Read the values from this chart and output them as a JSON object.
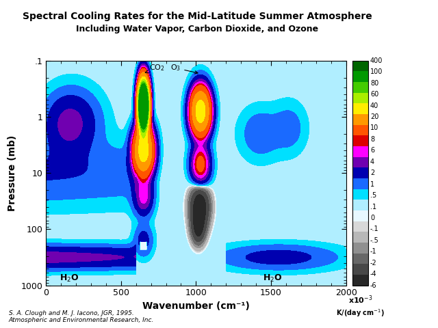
{
  "title1": "Spectral Cooling Rates for the Mid-Latitude Summer Atmosphere",
  "title2": "Including Water Vapor, Carbon Dioxide, and Ozone",
  "xlabel": "Wavenumber (cm⁻¹)",
  "ylabel": "Pressure (mb)",
  "footnote": "S. A. Clough and M. J. Iacono, JGR, 1995.\nAtmospheric and Environmental Research, Inc.",
  "levels": [
    -6,
    -4,
    -2,
    -1,
    -0.5,
    -0.1,
    0,
    0.1,
    0.5,
    1,
    2,
    4,
    6,
    8,
    10,
    20,
    40,
    60,
    80,
    100,
    400
  ],
  "level_colors": [
    "#282828",
    "#484848",
    "#686868",
    "#909090",
    "#b8b8b8",
    "#d8d8d8",
    "#e8f8ff",
    "#b0eeff",
    "#00e0ff",
    "#1a6aff",
    "#0000b0",
    "#7000b0",
    "#ff00ff",
    "#dd0000",
    "#ff5500",
    "#ff9900",
    "#ffee00",
    "#aaee00",
    "#44cc00",
    "#009900",
    "#006600"
  ],
  "cb_labels": [
    "400",
    "100",
    "80",
    "60",
    "40",
    "20",
    "10",
    "8",
    "6",
    "4",
    "2",
    "1",
    ".5",
    ".1",
    "0",
    "-.1",
    "-.5",
    "-1",
    "-2",
    "-4",
    "-6"
  ]
}
